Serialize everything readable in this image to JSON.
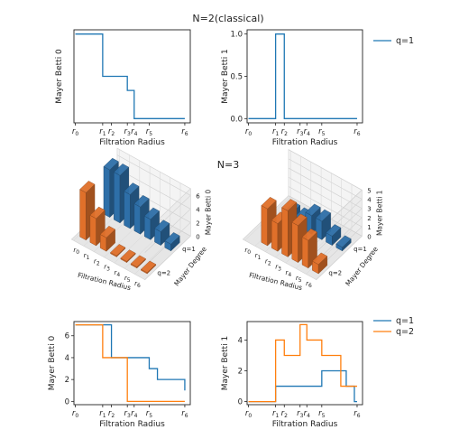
{
  "figure": {
    "title_top": "N=2(classical)",
    "title_mid": "N=3"
  },
  "colors": {
    "q1": "#1f77b4",
    "q2": "#ff7f0e",
    "q1_bar": "#2e6fa8",
    "q2_bar": "#e0702a",
    "axis": "#222222",
    "pane": "#f2f2f2",
    "grid": "#d9d9d9"
  },
  "legends": {
    "top": [
      "q=1"
    ],
    "bottom": [
      "q=1",
      "q=2"
    ]
  },
  "chart_data": [
    {
      "id": "n2-betti0",
      "type": "line",
      "step": "post",
      "xlabel": "Filtration Radius",
      "ylabel": "Mayer Betti 0",
      "xticks": [
        "r0",
        "r1",
        "r2",
        "r3",
        "r4",
        "r5",
        "r6"
      ],
      "xtick_pos": [
        0,
        1.0,
        1.32,
        1.9,
        2.15,
        2.7,
        4.0
      ],
      "xlim": [
        -0.05,
        4.2
      ],
      "ylim": [
        0.7,
        7.3
      ],
      "yticks": [],
      "series": [
        {
          "name": "q=1",
          "color": "#1f77b4",
          "x": [
            0,
            1.0,
            1.32,
            1.9,
            2.15,
            4.0
          ],
          "y": [
            7,
            4,
            4,
            3,
            1,
            1
          ]
        }
      ]
    },
    {
      "id": "n2-betti1",
      "type": "line",
      "step": "post",
      "xlabel": "Filtration Radius",
      "ylabel": "Mayer Betti 1",
      "xticks": [
        "r0",
        "r1",
        "r2",
        "r3",
        "r4",
        "r5",
        "r6"
      ],
      "xtick_pos": [
        0,
        1.0,
        1.32,
        1.9,
        2.15,
        2.7,
        4.0
      ],
      "xlim": [
        -0.05,
        4.2
      ],
      "ylim": [
        -0.05,
        1.05
      ],
      "yticks": [
        "0.0",
        "0.5",
        "1.0"
      ],
      "ytick_vals": [
        0,
        0.5,
        1.0
      ],
      "series": [
        {
          "name": "q=1",
          "color": "#1f77b4",
          "x": [
            0,
            1.0,
            1.32,
            4.0
          ],
          "y": [
            0,
            1,
            0,
            0
          ]
        }
      ]
    },
    {
      "id": "n3-betti0-3d",
      "type": "bar3d",
      "xlabel": "Filtration Radius",
      "ylabel": "Mayer Degree",
      "zlabel": "Mayer Betti 0",
      "xticks": [
        "r0",
        "r1",
        "r2",
        "r3",
        "r4",
        "r5",
        "r6"
      ],
      "yticks": [
        "q=1",
        "q=2"
      ],
      "zticks": [
        "0",
        "2",
        "4",
        "6"
      ],
      "zlim": [
        0,
        7
      ],
      "series": [
        {
          "name": "q=1",
          "color": "#2e6fa8",
          "values": [
            7,
            7,
            5,
            4,
            3,
            2,
            1
          ]
        },
        {
          "name": "q=2",
          "color": "#e0702a",
          "values": [
            7,
            4,
            2,
            0.15,
            0.15,
            0.15,
            0.15
          ]
        }
      ]
    },
    {
      "id": "n3-betti1-3d",
      "type": "bar3d",
      "xlabel": "Filtration Radius",
      "ylabel": "Mayer Degree",
      "zlabel": "Mayer Betti 1",
      "xticks": [
        "r0",
        "r1",
        "r2",
        "r3",
        "r4",
        "r5",
        "r6"
      ],
      "yticks": [
        "q=1",
        "q=2"
      ],
      "zticks": [
        "0",
        "1",
        "2",
        "3",
        "4",
        "5"
      ],
      "zlim": [
        0,
        5
      ],
      "series": [
        {
          "name": "q=1",
          "color": "#2e6fa8",
          "values": [
            0,
            1,
            1,
            2,
            2,
            1,
            0.4
          ]
        },
        {
          "name": "q=2",
          "color": "#e0702a",
          "values": [
            0,
            4,
            3,
            5,
            4,
            3,
            1
          ]
        }
      ]
    },
    {
      "id": "n3-betti0-2d",
      "type": "line",
      "step": "post",
      "xlabel": "Filtration Radius",
      "ylabel": "Mayer Betti 0",
      "xticks": [
        "r0",
        "r1",
        "r2",
        "r3",
        "r4",
        "r5",
        "r6"
      ],
      "xtick_pos": [
        0,
        1.0,
        1.32,
        1.9,
        2.15,
        2.7,
        4.0
      ],
      "xlim": [
        -0.05,
        4.2
      ],
      "ylim": [
        -0.3,
        7.3
      ],
      "yticks": [
        "0",
        "2",
        "4",
        "6"
      ],
      "ytick_vals": [
        0,
        2,
        4,
        6
      ],
      "series": [
        {
          "name": "q=1",
          "color": "#1f77b4",
          "x": [
            0,
            1.32,
            1.9,
            2.7,
            3.0,
            4.0
          ],
          "y": [
            7,
            4,
            4,
            3,
            2,
            1
          ]
        },
        {
          "name": "q=2",
          "color": "#ff7f0e",
          "x": [
            0,
            1.0,
            1.9,
            4.0
          ],
          "y": [
            7,
            4,
            0,
            0
          ]
        }
      ]
    },
    {
      "id": "n3-betti1-2d",
      "type": "line",
      "step": "post",
      "xlabel": "Filtration Radius",
      "ylabel": "Mayer Betti 1",
      "xticks": [
        "r0",
        "r1",
        "r2",
        "r3",
        "r4",
        "r5",
        "r6"
      ],
      "xtick_pos": [
        0,
        1.0,
        1.32,
        1.9,
        2.15,
        2.7,
        4.0
      ],
      "xlim": [
        -0.05,
        4.2
      ],
      "ylim": [
        -0.2,
        5.2
      ],
      "yticks": [
        "0",
        "2",
        "4"
      ],
      "ytick_vals": [
        0,
        2,
        4
      ],
      "series": [
        {
          "name": "q=1",
          "color": "#1f77b4",
          "x": [
            0,
            1.0,
            1.9,
            2.7,
            3.2,
            3.6,
            3.9,
            4.0
          ],
          "y": [
            0,
            1,
            1,
            2,
            2,
            1,
            0,
            0
          ]
        },
        {
          "name": "q=2",
          "color": "#ff7f0e",
          "x": [
            0,
            1.0,
            1.32,
            1.9,
            2.15,
            2.7,
            3.4,
            4.0
          ],
          "y": [
            0,
            4,
            3,
            5,
            4,
            3,
            1,
            1
          ]
        }
      ]
    }
  ]
}
